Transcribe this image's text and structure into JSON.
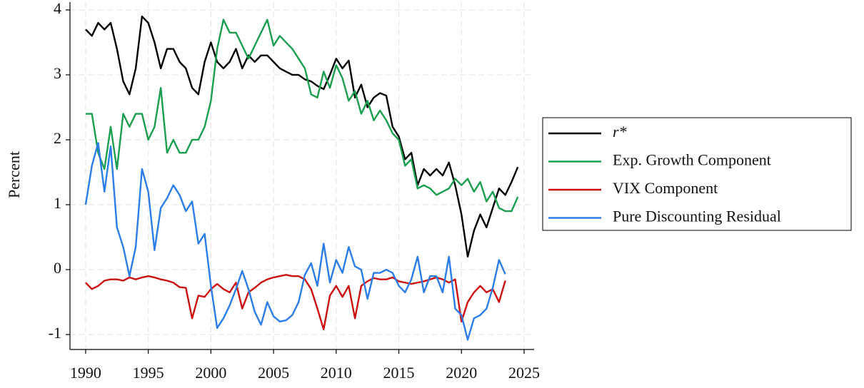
{
  "chart_data": {
    "type": "line",
    "y_label": "Percent",
    "x": [
      1990,
      1990.5,
      1991,
      1991.5,
      1992,
      1992.5,
      1993,
      1993.5,
      1994,
      1994.5,
      1995,
      1995.5,
      1996,
      1996.5,
      1997,
      1997.5,
      1998,
      1998.5,
      1999,
      1999.5,
      2000,
      2000.5,
      2001,
      2001.5,
      2002,
      2002.5,
      2003,
      2003.5,
      2004,
      2004.5,
      2005,
      2005.5,
      2006,
      2006.5,
      2007,
      2007.5,
      2008,
      2008.5,
      2009,
      2009.5,
      2010,
      2010.5,
      2011,
      2011.5,
      2012,
      2012.5,
      2013,
      2013.5,
      2014,
      2014.5,
      2015,
      2015.5,
      2016,
      2016.5,
      2017,
      2017.5,
      2018,
      2018.5,
      2019,
      2019.5,
      2020,
      2020.5,
      2021,
      2021.5,
      2022,
      2022.5,
      2023,
      2023.5,
      2024,
      2024.5
    ],
    "series": [
      {
        "name": "r*",
        "color": "#000000",
        "values": [
          3.7,
          3.6,
          3.8,
          3.7,
          3.8,
          3.4,
          2.9,
          2.7,
          3.1,
          3.9,
          3.8,
          3.5,
          3.1,
          3.4,
          3.4,
          3.2,
          3.1,
          2.8,
          2.7,
          3.2,
          3.5,
          3.2,
          3.1,
          3.2,
          3.4,
          3.1,
          3.3,
          3.2,
          3.3,
          3.3,
          3.2,
          3.1,
          3.05,
          3.0,
          3.0,
          2.93,
          2.9,
          2.83,
          2.78,
          3.0,
          3.25,
          3.1,
          3.22,
          2.65,
          2.85,
          2.5,
          2.65,
          2.72,
          2.68,
          2.2,
          2.05,
          1.7,
          1.8,
          1.3,
          1.55,
          1.45,
          1.55,
          1.45,
          1.65,
          1.3,
          0.85,
          0.2,
          0.6,
          0.85,
          0.65,
          0.95,
          1.25,
          1.15,
          1.35,
          1.58
        ]
      },
      {
        "name": "Exp. Growth Component",
        "color": "#1a9e4f",
        "values": [
          2.4,
          2.4,
          1.8,
          1.55,
          2.2,
          1.55,
          2.4,
          2.2,
          2.4,
          2.4,
          2.0,
          2.2,
          2.8,
          1.8,
          2.0,
          1.8,
          1.8,
          2.0,
          2.0,
          2.2,
          2.6,
          3.4,
          3.85,
          3.65,
          3.65,
          3.45,
          3.25,
          3.45,
          3.65,
          3.85,
          3.45,
          3.6,
          3.5,
          3.4,
          3.25,
          3.1,
          2.7,
          2.65,
          3.05,
          2.8,
          3.15,
          2.95,
          2.6,
          2.75,
          2.4,
          2.6,
          2.3,
          2.45,
          2.3,
          2.1,
          2.0,
          1.6,
          1.7,
          1.25,
          1.3,
          1.25,
          1.15,
          1.2,
          1.25,
          1.4,
          1.3,
          1.4,
          1.2,
          1.35,
          1.05,
          1.2,
          0.95,
          0.9,
          0.9,
          1.12
        ]
      },
      {
        "name": "VIX Component",
        "color": "#cc1111",
        "values": [
          -0.2,
          -0.3,
          -0.25,
          -0.17,
          -0.15,
          -0.15,
          -0.17,
          -0.12,
          -0.15,
          -0.12,
          -0.1,
          -0.12,
          -0.15,
          -0.17,
          -0.2,
          -0.27,
          -0.28,
          -0.75,
          -0.4,
          -0.42,
          -0.3,
          -0.22,
          -0.3,
          -0.35,
          -0.2,
          -0.6,
          -0.35,
          -0.28,
          -0.2,
          -0.15,
          -0.12,
          -0.1,
          -0.08,
          -0.1,
          -0.1,
          -0.15,
          -0.3,
          -0.6,
          -0.92,
          -0.4,
          -0.25,
          -0.42,
          -0.25,
          -0.75,
          -0.25,
          -0.18,
          -0.13,
          -0.15,
          -0.15,
          -0.12,
          -0.18,
          -0.2,
          -0.22,
          -0.2,
          -0.18,
          -0.15,
          -0.12,
          -0.15,
          -0.2,
          -0.15,
          -0.8,
          -0.5,
          -0.35,
          -0.25,
          -0.35,
          -0.3,
          -0.5,
          -0.17,
          null,
          null
        ]
      },
      {
        "name": "Pure Discounting Residual",
        "color": "#2b7de9",
        "values": [
          1.0,
          1.6,
          1.95,
          1.2,
          1.9,
          0.65,
          0.35,
          -0.1,
          0.35,
          1.55,
          1.2,
          0.3,
          0.95,
          1.1,
          1.3,
          1.15,
          0.9,
          1.05,
          0.4,
          0.55,
          -0.25,
          -0.9,
          -0.75,
          -0.55,
          -0.3,
          -0.02,
          -0.3,
          -0.65,
          -0.85,
          -0.5,
          -0.72,
          -0.8,
          -0.78,
          -0.7,
          -0.5,
          -0.08,
          0.1,
          -0.25,
          0.4,
          -0.2,
          0.15,
          -0.05,
          0.35,
          0.05,
          0.0,
          -0.45,
          -0.05,
          -0.05,
          0.0,
          -0.05,
          -0.25,
          -0.35,
          -0.15,
          0.2,
          -0.35,
          -0.1,
          -0.1,
          -0.35,
          0.2,
          -0.6,
          -0.7,
          -1.08,
          -0.75,
          -0.7,
          -0.6,
          -0.28,
          0.15,
          -0.07,
          null,
          null
        ]
      }
    ],
    "xlim": [
      1988.75,
      2025.8
    ],
    "xticks": [
      1990,
      1995,
      2000,
      2005,
      2010,
      2015,
      2020,
      2025
    ],
    "ylim": [
      -1.23,
      4.12
    ],
    "yticks": [
      -1,
      0,
      1,
      2,
      3,
      4
    ],
    "grid": true,
    "legend": "right"
  }
}
